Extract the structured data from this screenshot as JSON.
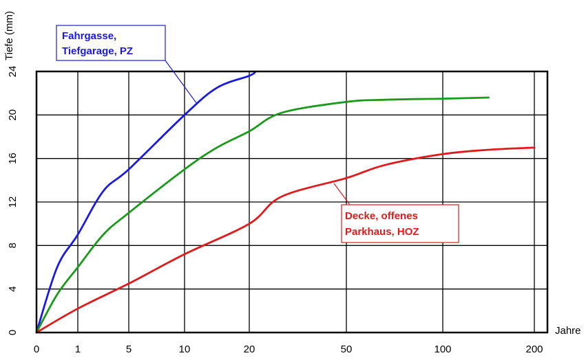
{
  "chart_data": {
    "type": "line",
    "xlabel": "Jahre",
    "ylabel": "Tiefe (mm)",
    "xlim": [
      0,
      200
    ],
    "ylim": [
      0,
      24
    ],
    "grid": true,
    "x_ticks": [
      0,
      1,
      5,
      10,
      20,
      50,
      100,
      200
    ],
    "y_ticks": [
      0,
      4,
      8,
      12,
      16,
      20,
      24
    ],
    "series": [
      {
        "color": "#1a1adf",
        "x": [
          0,
          0.5,
          1,
          3,
          5,
          10,
          15,
          20,
          22
        ],
        "y": [
          0,
          6,
          9,
          13,
          15,
          20,
          22.5,
          23.6,
          24
        ]
      },
      {
        "color": "#1a9a1a",
        "x": [
          0,
          0.5,
          1,
          3,
          5,
          10,
          15,
          20,
          30,
          50,
          70,
          100,
          150
        ],
        "y": [
          0,
          3.5,
          6,
          9,
          11,
          15,
          17,
          18.5,
          20.2,
          21.2,
          21.4,
          21.5,
          21.6
        ]
      },
      {
        "color": "#e01a1a",
        "x": [
          0,
          1,
          5,
          10,
          20,
          30,
          50,
          70,
          100,
          150,
          200
        ],
        "y": [
          0,
          2.2,
          4.5,
          7.2,
          10,
          12.5,
          14.2,
          15.4,
          16.4,
          16.8,
          17
        ]
      }
    ],
    "annotations": [
      {
        "lines": [
          "Fahrgasse,",
          "Tiefgarage, PZ"
        ],
        "color": "#1a1adf"
      },
      {
        "lines": [
          "Decke, offenes",
          "Parkhaus, HOZ"
        ],
        "color": "#e01a1a"
      }
    ]
  }
}
